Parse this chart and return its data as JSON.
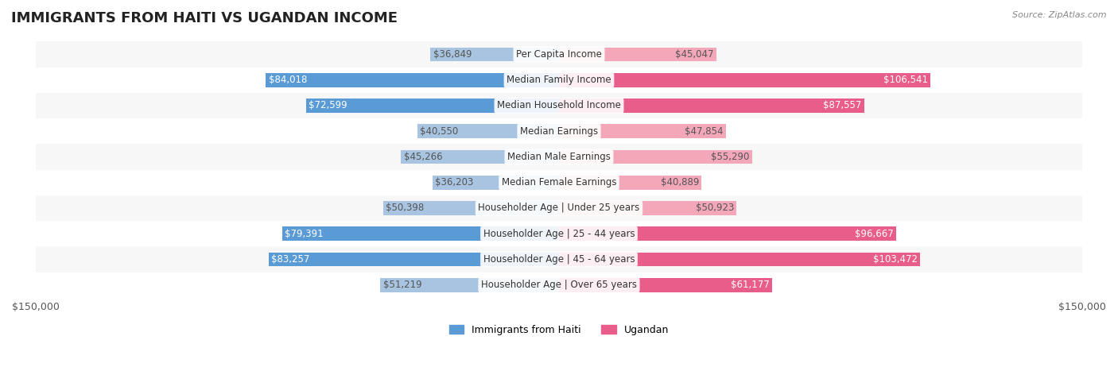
{
  "title": "IMMIGRANTS FROM HAITI VS UGANDAN INCOME",
  "source": "Source: ZipAtlas.com",
  "categories": [
    "Per Capita Income",
    "Median Family Income",
    "Median Household Income",
    "Median Earnings",
    "Median Male Earnings",
    "Median Female Earnings",
    "Householder Age | Under 25 years",
    "Householder Age | 25 - 44 years",
    "Householder Age | 45 - 64 years",
    "Householder Age | Over 65 years"
  ],
  "haiti_values": [
    36849,
    84018,
    72599,
    40550,
    45266,
    36203,
    50398,
    79391,
    83257,
    51219
  ],
  "ugandan_values": [
    45047,
    106541,
    87557,
    47854,
    55290,
    40889,
    50923,
    96667,
    103472,
    61177
  ],
  "haiti_labels": [
    "$36,849",
    "$84,018",
    "$72,599",
    "$40,550",
    "$45,266",
    "$36,203",
    "$50,398",
    "$79,391",
    "$83,257",
    "$51,219"
  ],
  "ugandan_labels": [
    "$45,047",
    "$106,541",
    "$87,557",
    "$47,854",
    "$55,290",
    "$40,889",
    "$50,923",
    "$96,667",
    "$103,472",
    "$61,177"
  ],
  "haiti_color_light": "#a8c4e0",
  "haiti_color_dark": "#5b9bd5",
  "ugandan_color_light": "#f4a7b9",
  "ugandan_color_dark": "#e85d8a",
  "max_value": 150000,
  "axis_label": "$150,000",
  "bar_height": 0.55,
  "row_bg_color": "#f0f0f0",
  "row_alt_color": "#ffffff",
  "label_fontsize": 8.5,
  "title_fontsize": 13,
  "category_fontsize": 8.5
}
